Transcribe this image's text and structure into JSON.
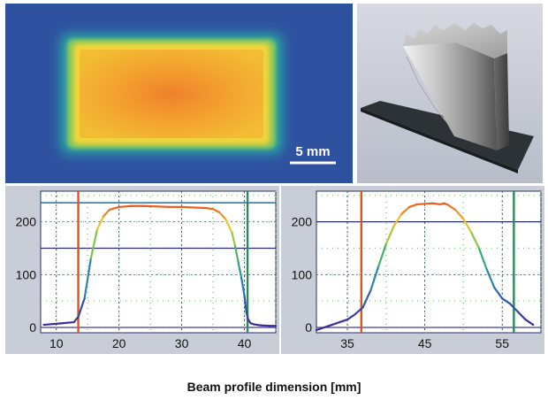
{
  "colors": {
    "map_background": "#2f52a0",
    "panel_background": "#c9cdd8",
    "plot_background": "#ffffff",
    "grid_major": "#2a2f6a",
    "grid_minor": "#8fc08f",
    "level_line_blue": "#1f6fb5",
    "marker_orange": "#e8501a",
    "marker_green": "#2a8a5a",
    "baseline_purple": "#4a3a9a"
  },
  "beam_map": {
    "scale_bar_label": "5 mm"
  },
  "caption": "Beam profile dimension [mm]",
  "chart_data": [
    {
      "type": "line",
      "grid": true,
      "x": [
        8,
        11,
        12.8,
        13.5,
        14.5,
        15.5,
        16.5,
        17.5,
        18.5,
        20,
        22,
        24,
        26,
        28,
        30,
        32,
        34,
        35,
        36,
        37,
        38,
        38.5,
        39,
        39.5,
        40,
        40.3,
        40.6,
        41,
        41.5,
        42.5,
        44,
        45
      ],
      "y": [
        5,
        8,
        10,
        20,
        55,
        130,
        185,
        210,
        223,
        228,
        230,
        230,
        229,
        228,
        228,
        227,
        226,
        224,
        218,
        205,
        180,
        155,
        125,
        95,
        60,
        30,
        15,
        8,
        6,
        4,
        3,
        3
      ],
      "xlim": [
        7.5,
        45
      ],
      "ylim": [
        -10,
        258
      ],
      "xticks": [
        10,
        20,
        30,
        40
      ],
      "yticks": [
        0,
        100,
        200
      ],
      "hlines": [
        {
          "y": 236,
          "role": "peak-level",
          "color": "#1f6fb5"
        },
        {
          "y": 150,
          "role": "mid-level",
          "color": "#2a2f6a"
        },
        {
          "y": 0,
          "role": "baseline",
          "color": "#4a3a9a"
        }
      ],
      "vlines": [
        {
          "x": 13.5,
          "color": "#e8501a"
        },
        {
          "x": 40.5,
          "color": "#2a8a5a"
        }
      ]
    },
    {
      "type": "line",
      "grid": true,
      "x": [
        31,
        33,
        35,
        36,
        37,
        38,
        39,
        40,
        41,
        42,
        43,
        44,
        45,
        46,
        47,
        47.5,
        48,
        49,
        50,
        51,
        52,
        53,
        54,
        55,
        56,
        57,
        58,
        59
      ],
      "y": [
        -5,
        5,
        15,
        25,
        38,
        70,
        115,
        158,
        192,
        215,
        228,
        233,
        234,
        235,
        233,
        235,
        232,
        222,
        205,
        180,
        150,
        110,
        75,
        55,
        45,
        30,
        15,
        5
      ],
      "xlim": [
        31,
        60
      ],
      "ylim": [
        -10,
        258
      ],
      "xticks": [
        35,
        45,
        55
      ],
      "yticks": [
        0,
        100,
        200
      ],
      "hlines": [
        {
          "y": 200,
          "role": "level",
          "color": "#2a2f6a"
        },
        {
          "y": 0,
          "role": "baseline",
          "color": "#4a3a9a"
        }
      ],
      "vlines": [
        {
          "x": 36.8,
          "color": "#e8501a"
        },
        {
          "x": 56.5,
          "color": "#2a8a5a"
        }
      ]
    }
  ]
}
